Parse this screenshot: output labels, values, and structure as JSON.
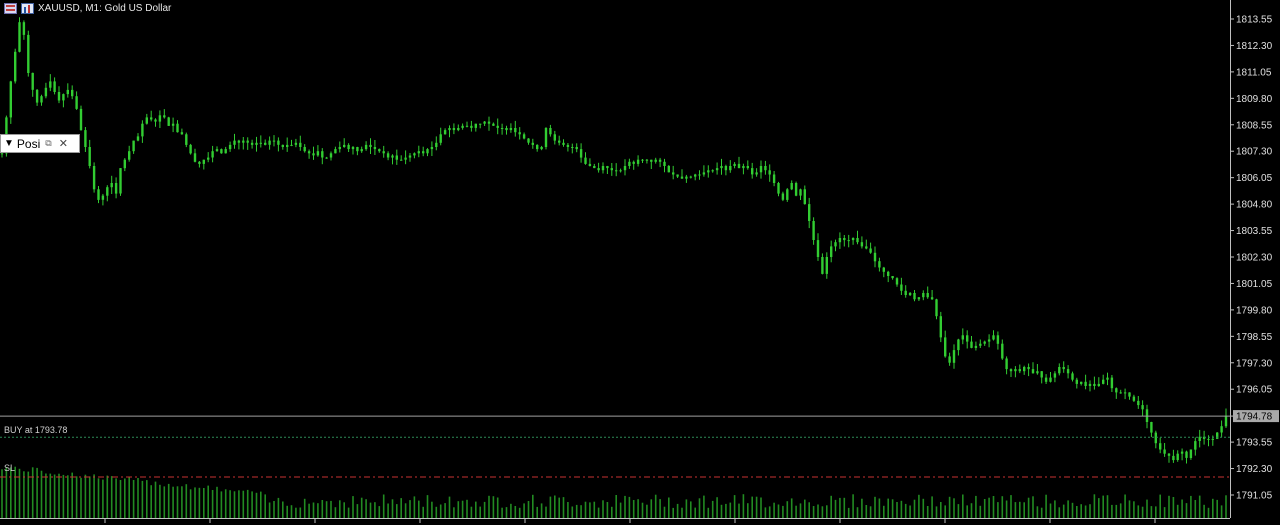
{
  "header": {
    "symbol_line": "XAUUSD, M1:  Gold US Dollar",
    "icons": [
      "grid-icon",
      "chart-window-icon"
    ]
  },
  "position_panel": {
    "label": "Posi",
    "collapse_icon": "triangle-down-icon",
    "restore_icon": "restore-icon",
    "close_icon": "close-icon"
  },
  "levels": {
    "buy_label": "BUY    at 1793.78",
    "sl_label": "SL",
    "current_price_label": "1794.78"
  },
  "colors": {
    "background": "#000000",
    "candle": "#32cd32",
    "volume": "#228b22",
    "grid_axis": "#c0c0c0",
    "buy_line": "#2e8b57",
    "sl_line": "#c83232",
    "current_line": "#a0a0a0"
  },
  "chart_data": {
    "type": "candlestick",
    "symbol": "XAUUSD",
    "timeframe": "M1",
    "y_tick_labels": [
      "1813.55",
      "1812.30",
      "1811.05",
      "1809.80",
      "1808.55",
      "1807.30",
      "1806.05",
      "1804.80",
      "1803.55",
      "1802.30",
      "1801.05",
      "1799.80",
      "1798.55",
      "1797.30",
      "1796.05",
      "1794.78",
      "1793.55",
      "1792.30",
      "1791.05"
    ],
    "ylim": [
      1790.2,
      1814.2
    ],
    "current_price": 1794.78,
    "buy_price": 1793.78,
    "sl_price": 1791.9,
    "close_series": [
      1807.2,
      1808.9,
      1810.6,
      1812.0,
      1813.4,
      1812.8,
      1811.0,
      1810.2,
      1809.6,
      1809.9,
      1810.3,
      1810.6,
      1810.1,
      1809.7,
      1810.0,
      1810.2,
      1809.9,
      1809.3,
      1808.3,
      1807.5,
      1806.6,
      1805.5,
      1805.0,
      1805.2,
      1805.6,
      1805.8,
      1805.3,
      1806.5,
      1806.9,
      1807.3,
      1807.8,
      1808.0,
      1808.6,
      1808.9,
      1808.8,
      1808.7,
      1809.0,
      1808.9,
      1808.5,
      1808.6,
      1808.2,
      1808.1,
      1807.6,
      1807.2,
      1806.8,
      1806.7,
      1806.9,
      1807.0,
      1807.3,
      1807.4,
      1807.2,
      1807.4,
      1807.6,
      1807.8,
      1807.7,
      1807.8,
      1807.7,
      1807.6,
      1807.7,
      1807.7,
      1807.6,
      1807.8,
      1807.8,
      1807.6,
      1807.5,
      1807.6,
      1807.6,
      1807.7,
      1807.5,
      1807.3,
      1807.2,
      1807.1,
      1807.3,
      1807.0,
      1807.0,
      1807.2,
      1807.4,
      1807.5,
      1807.6,
      1807.4,
      1807.5,
      1807.3,
      1807.4,
      1807.6,
      1807.5,
      1807.4,
      1807.3,
      1807.2,
      1807.0,
      1807.1,
      1806.9,
      1806.9,
      1807.0,
      1807.1,
      1807.2,
      1807.3,
      1807.2,
      1807.4,
      1807.5,
      1807.7,
      1808.1,
      1808.3,
      1808.4,
      1808.3,
      1808.4,
      1808.5,
      1808.5,
      1808.4,
      1808.6,
      1808.6,
      1808.7,
      1808.6,
      1808.5,
      1808.4,
      1808.4,
      1808.3,
      1808.4,
      1808.2,
      1808.1,
      1807.9,
      1807.7,
      1807.6,
      1807.4,
      1807.5,
      1808.4,
      1808.1,
      1807.8,
      1807.7,
      1807.6,
      1807.5,
      1807.5,
      1807.4,
      1807.0,
      1806.7,
      1806.6,
      1806.5,
      1806.4,
      1806.6,
      1806.5,
      1806.4,
      1806.4,
      1806.4,
      1806.6,
      1806.8,
      1806.7,
      1806.9,
      1806.9,
      1806.9,
      1806.8,
      1806.9,
      1806.8,
      1806.6,
      1806.3,
      1806.2,
      1806.1,
      1806.0,
      1806.1,
      1806.1,
      1806.2,
      1806.2,
      1806.3,
      1806.4,
      1806.4,
      1806.5,
      1806.6,
      1806.4,
      1806.6,
      1806.7,
      1806.5,
      1806.6,
      1806.5,
      1806.2,
      1806.3,
      1806.6,
      1806.4,
      1806.2,
      1805.8,
      1805.3,
      1805.0,
      1805.5,
      1805.8,
      1805.2,
      1805.5,
      1804.8,
      1804.0,
      1803.1,
      1802.3,
      1801.5,
      1802.3,
      1802.8,
      1803.0,
      1803.2,
      1803.1,
      1803.1,
      1803.2,
      1803.0,
      1802.8,
      1802.7,
      1802.5,
      1802.1,
      1801.8,
      1801.6,
      1801.4,
      1801.3,
      1801.0,
      1800.7,
      1800.5,
      1800.6,
      1800.3,
      1800.4,
      1800.6,
      1800.4,
      1800.3,
      1799.5,
      1798.5,
      1797.6,
      1797.3,
      1797.9,
      1798.4,
      1798.6,
      1798.3,
      1798.0,
      1798.1,
      1798.2,
      1798.3,
      1798.4,
      1798.6,
      1798.2,
      1797.5,
      1797.0,
      1796.9,
      1797.0,
      1796.9,
      1797.1,
      1797.0,
      1796.8,
      1796.9,
      1796.6,
      1796.4,
      1796.6,
      1796.8,
      1797.1,
      1797.0,
      1796.8,
      1796.5,
      1796.3,
      1796.4,
      1796.2,
      1796.3,
      1796.2,
      1796.3,
      1796.5,
      1796.6,
      1796.1,
      1795.9,
      1795.9,
      1795.9,
      1795.7,
      1795.5,
      1795.3,
      1795.1,
      1794.5,
      1794.0,
      1793.5,
      1793.2,
      1793.0,
      1792.9,
      1792.7,
      1793.0,
      1793.1,
      1792.8,
      1793.2,
      1793.6,
      1793.8,
      1793.7,
      1793.7,
      1793.7,
      1794.0,
      1794.3,
      1794.8
    ]
  }
}
